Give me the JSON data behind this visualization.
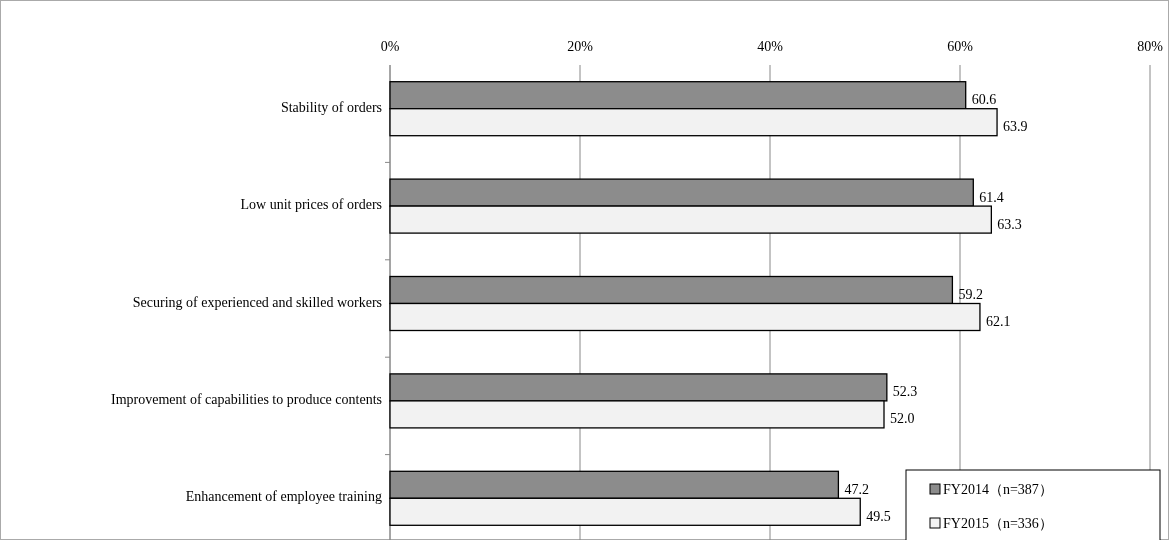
{
  "chart_data": {
    "type": "bar",
    "orientation": "horizontal",
    "categories": [
      "Stability of orders",
      "Low unit prices of orders",
      "Securing of experienced and skilled workers",
      "Improvement of capabilities to produce contents",
      "Enhancement of employee training"
    ],
    "series": [
      {
        "name": "FY2014（n=387）",
        "color": "#8c8c8c",
        "values": [
          60.6,
          61.4,
          59.2,
          52.3,
          47.2
        ],
        "value_labels": [
          "60.6",
          "61.4",
          "59.2",
          "52.3",
          "47.2"
        ]
      },
      {
        "name": "FY2015（n=336）",
        "color": "#f2f2f2",
        "values": [
          63.9,
          63.3,
          62.1,
          52.0,
          49.5
        ],
        "value_labels": [
          "63.9",
          "63.3",
          "62.1",
          "52.0",
          "49.5"
        ]
      }
    ],
    "xlim": [
      0,
      80
    ],
    "xticks": [
      {
        "value": 0,
        "label": "0%"
      },
      {
        "value": 20,
        "label": "20%"
      },
      {
        "value": 40,
        "label": "40%"
      },
      {
        "value": 60,
        "label": "60%"
      },
      {
        "value": 80,
        "label": "80%"
      }
    ],
    "grid": "x",
    "legend": "bottom right"
  }
}
